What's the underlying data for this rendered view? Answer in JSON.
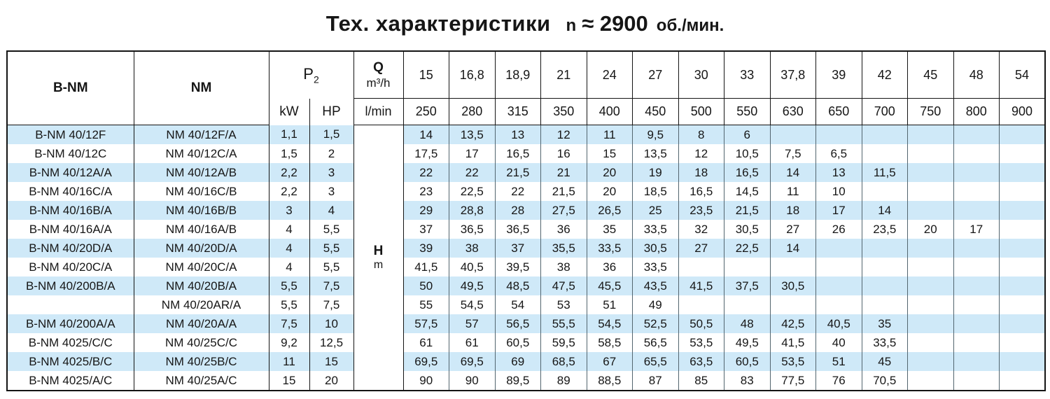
{
  "title": {
    "main": "Тех. характеристики",
    "n_symbol": "n",
    "speed": "≈ 2900",
    "units": "об./мин."
  },
  "colors": {
    "stripe_blue": "#cfe9f8",
    "grid_dark": "#141414",
    "grid_light": "#53656f",
    "text": "#161616"
  },
  "table": {
    "headers": {
      "bnm": "B-NM",
      "nm": "NM",
      "p2_base": "P",
      "p2_sub": "2",
      "kw": "kW",
      "hp": "HP",
      "q_symbol": "Q",
      "q_unit_top": "m³/h",
      "q_unit_bottom": "l/min",
      "h_symbol": "H",
      "h_unit": "m"
    },
    "flow_m3h": [
      "15",
      "16,8",
      "18,9",
      "21",
      "24",
      "27",
      "30",
      "33",
      "37,8",
      "39",
      "42",
      "45",
      "48",
      "54"
    ],
    "flow_lmin": [
      "250",
      "280",
      "315",
      "350",
      "400",
      "450",
      "500",
      "550",
      "630",
      "650",
      "700",
      "750",
      "800",
      "900"
    ],
    "rows": [
      {
        "bnm": "B-NM 40/12F",
        "nm": "NM 40/12F/A",
        "kw": "1,1",
        "hp": "1,5",
        "h": [
          "14",
          "13,5",
          "13",
          "12",
          "11",
          "9,5",
          "8",
          "6",
          "",
          "",
          "",
          "",
          "",
          ""
        ]
      },
      {
        "bnm": "B-NM 40/12C",
        "nm": "NM 40/12C/A",
        "kw": "1,5",
        "hp": "2",
        "h": [
          "17,5",
          "17",
          "16,5",
          "16",
          "15",
          "13,5",
          "12",
          "10,5",
          "7,5",
          "6,5",
          "",
          "",
          "",
          ""
        ]
      },
      {
        "bnm": "B-NM 40/12A/A",
        "nm": "NM 40/12A/B",
        "kw": "2,2",
        "hp": "3",
        "h": [
          "22",
          "22",
          "21,5",
          "21",
          "20",
          "19",
          "18",
          "16,5",
          "14",
          "13",
          "11,5",
          "",
          "",
          ""
        ]
      },
      {
        "bnm": "B-NM 40/16C/A",
        "nm": "NM 40/16C/B",
        "kw": "2,2",
        "hp": "3",
        "h": [
          "23",
          "22,5",
          "22",
          "21,5",
          "20",
          "18,5",
          "16,5",
          "14,5",
          "11",
          "10",
          "",
          "",
          "",
          ""
        ]
      },
      {
        "bnm": "B-NM 40/16B/A",
        "nm": "NM 40/16B/B",
        "kw": "3",
        "hp": "4",
        "h": [
          "29",
          "28,8",
          "28",
          "27,5",
          "26,5",
          "25",
          "23,5",
          "21,5",
          "18",
          "17",
          "14",
          "",
          "",
          ""
        ]
      },
      {
        "bnm": "B-NM 40/16A/A",
        "nm": "NM 40/16A/B",
        "kw": "4",
        "hp": "5,5",
        "h": [
          "37",
          "36,5",
          "36,5",
          "36",
          "35",
          "33,5",
          "32",
          "30,5",
          "27",
          "26",
          "23,5",
          "20",
          "17",
          ""
        ]
      },
      {
        "bnm": "B-NM 40/20D/A",
        "nm": "NM 40/20D/A",
        "kw": "4",
        "hp": "5,5",
        "h": [
          "39",
          "38",
          "37",
          "35,5",
          "33,5",
          "30,5",
          "27",
          "22,5",
          "14",
          "",
          "",
          "",
          "",
          ""
        ]
      },
      {
        "bnm": "B-NM 40/20C/A",
        "nm": "NM 40/20C/A",
        "kw": "4",
        "hp": "5,5",
        "h": [
          "41,5",
          "40,5",
          "39,5",
          "38",
          "36",
          "33,5",
          "",
          "",
          "",
          "",
          "",
          "",
          "",
          ""
        ]
      },
      {
        "bnm": "B-NM 40/200B/A",
        "nm": "NM 40/20B/A",
        "kw": "5,5",
        "hp": "7,5",
        "h": [
          "50",
          "49,5",
          "48,5",
          "47,5",
          "45,5",
          "43,5",
          "41,5",
          "37,5",
          "30,5",
          "",
          "",
          "",
          "",
          ""
        ]
      },
      {
        "bnm": "",
        "nm": "NM 40/20AR/A",
        "kw": "5,5",
        "hp": "7,5",
        "h": [
          "55",
          "54,5",
          "54",
          "53",
          "51",
          "49",
          "",
          "",
          "",
          "",
          "",
          "",
          "",
          ""
        ]
      },
      {
        "bnm": "B-NM 40/200A/A",
        "nm": "NM 40/20A/A",
        "kw": "7,5",
        "hp": "10",
        "h": [
          "57,5",
          "57",
          "56,5",
          "55,5",
          "54,5",
          "52,5",
          "50,5",
          "48",
          "42,5",
          "40,5",
          "35",
          "",
          "",
          ""
        ]
      },
      {
        "bnm": "B-NM 4025/C/C",
        "nm": "NM 40/25C/C",
        "kw": "9,2",
        "hp": "12,5",
        "h": [
          "61",
          "61",
          "60,5",
          "59,5",
          "58,5",
          "56,5",
          "53,5",
          "49,5",
          "41,5",
          "40",
          "33,5",
          "",
          "",
          ""
        ]
      },
      {
        "bnm": "B-NM 4025/B/C",
        "nm": "NM 40/25B/C",
        "kw": "11",
        "hp": "15",
        "h": [
          "69,5",
          "69,5",
          "69",
          "68,5",
          "67",
          "65,5",
          "63,5",
          "60,5",
          "53,5",
          "51",
          "45",
          "",
          "",
          ""
        ]
      },
      {
        "bnm": "B-NM 4025/A/C",
        "nm": "NM 40/25A/C",
        "kw": "15",
        "hp": "20",
        "h": [
          "90",
          "90",
          "89,5",
          "89",
          "88,5",
          "87",
          "85",
          "83",
          "77,5",
          "76",
          "70,5",
          "",
          "",
          ""
        ]
      }
    ]
  }
}
